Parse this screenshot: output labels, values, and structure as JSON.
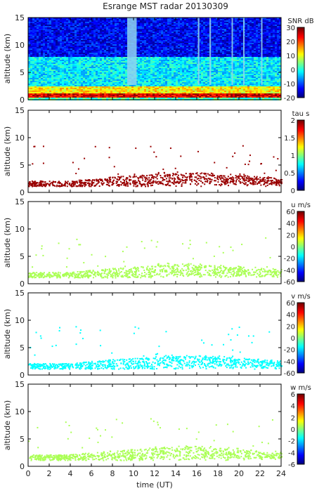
{
  "chart_data": {
    "title": "Esrange MST radar 20130309",
    "type": "heatmap",
    "x": {
      "label": "time (UT)",
      "range": [
        0,
        24
      ],
      "ticks": [
        "0",
        "2",
        "4",
        "6",
        "8",
        "10",
        "12",
        "14",
        "16",
        "18",
        "20",
        "22",
        "24"
      ]
    },
    "panels": [
      {
        "id": "snr",
        "ylabel": "altitude (km)",
        "yrange": [
          0,
          15
        ],
        "yticks": [
          "0",
          "5",
          "10",
          "15"
        ],
        "colorbar": {
          "label": "SNR dB",
          "range": [
            -20,
            30
          ],
          "ticks": [
            "-20",
            "-10",
            "0",
            "10",
            "20",
            "30"
          ]
        },
        "pattern": "noise-field",
        "description_layers": [
          {
            "alt": [
              0.5,
              1.2
            ],
            "value": 25
          },
          {
            "alt": [
              1.2,
              2.5
            ],
            "value": 12
          },
          {
            "alt": [
              2.5,
              8.0
            ],
            "value": -2
          },
          {
            "alt": [
              8.0,
              15.0
            ],
            "value": -14
          }
        ]
      },
      {
        "id": "tau",
        "ylabel": "altitude (km)",
        "yrange": [
          0,
          15
        ],
        "yticks": [
          "0",
          "5",
          "10",
          "15"
        ],
        "colorbar": {
          "label": "tau s",
          "range": [
            0,
            2
          ],
          "ticks": [
            "0",
            "0.5",
            "1",
            "1.5",
            "2"
          ]
        },
        "pattern": "sparse-layer",
        "layer_value": 1.95
      },
      {
        "id": "u",
        "ylabel": "altitude (km)",
        "yrange": [
          0,
          15
        ],
        "yticks": [
          "0",
          "5",
          "10",
          "15"
        ],
        "colorbar": {
          "label": "u m/s",
          "range": [
            -60,
            60
          ],
          "ticks": [
            "-60",
            "-40",
            "-20",
            "0",
            "20",
            "40",
            "60"
          ]
        },
        "pattern": "sparse-layer",
        "layer_value": 5
      },
      {
        "id": "v",
        "ylabel": "altitude (km)",
        "yrange": [
          0,
          15
        ],
        "yticks": [
          "0",
          "5",
          "10",
          "15"
        ],
        "colorbar": {
          "label": "v m/s",
          "range": [
            -60,
            60
          ],
          "ticks": [
            "-60",
            "-40",
            "-20",
            "0",
            "20",
            "40",
            "60"
          ]
        },
        "pattern": "sparse-layer",
        "layer_value": -15
      },
      {
        "id": "w",
        "ylabel": "altitude (km)",
        "yrange": [
          0,
          15
        ],
        "yticks": [
          "0",
          "5",
          "10",
          "15"
        ],
        "colorbar": {
          "label": "w m/s",
          "range": [
            -6,
            6
          ],
          "ticks": [
            "-6",
            "-4",
            "-2",
            "0",
            "2",
            "4",
            "6"
          ]
        },
        "pattern": "sparse-layer",
        "layer_value": 0.5
      }
    ]
  }
}
